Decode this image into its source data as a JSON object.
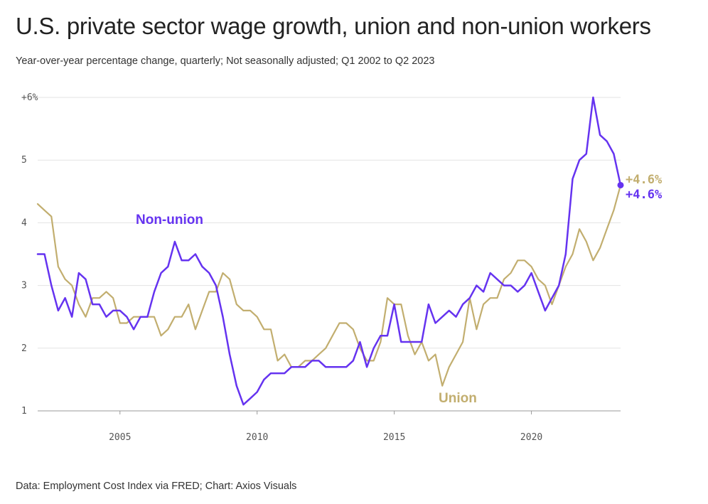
{
  "title": "U.S. private sector wage growth, union and non-union workers",
  "subtitle": "Year-over-year percentage change, quarterly; Not seasonally adjusted; Q1 2002 to Q2 2023",
  "source": "Data: Employment Cost Index via FRED; Chart: Axios Visuals",
  "colors": {
    "non_union": "#6533f0",
    "union": "#c2ae6f",
    "grid": "#e3e3e3",
    "axis": "#999999"
  },
  "chart_data": {
    "type": "line",
    "title": "U.S. private sector wage growth, union and non-union workers",
    "xlabel": "",
    "ylabel": "",
    "ylim": [
      1,
      6
    ],
    "xlim": [
      2002.0,
      2023.25
    ],
    "grid": true,
    "y_ticks": [
      {
        "value": 6,
        "label": "+6%"
      },
      {
        "value": 5,
        "label": "5"
      },
      {
        "value": 4,
        "label": "4"
      },
      {
        "value": 3,
        "label": "3"
      },
      {
        "value": 2,
        "label": "2"
      },
      {
        "value": 1,
        "label": "1"
      }
    ],
    "x_ticks": [
      {
        "value": 2005,
        "label": "2005"
      },
      {
        "value": 2010,
        "label": "2010"
      },
      {
        "value": 2015,
        "label": "2015"
      },
      {
        "value": 2020,
        "label": "2020"
      }
    ],
    "x_start": "2002-Q1",
    "frequency": "quarterly",
    "series": [
      {
        "name": "Non-union",
        "key": "non_union",
        "end_label": "+4.6%",
        "values": [
          3.5,
          3.5,
          3.0,
          2.6,
          2.8,
          2.5,
          3.2,
          3.1,
          2.7,
          2.7,
          2.5,
          2.6,
          2.6,
          2.5,
          2.3,
          2.5,
          2.5,
          2.9,
          3.2,
          3.3,
          3.7,
          3.4,
          3.4,
          3.5,
          3.3,
          3.2,
          3.0,
          2.5,
          1.9,
          1.4,
          1.1,
          1.2,
          1.3,
          1.5,
          1.6,
          1.6,
          1.6,
          1.7,
          1.7,
          1.7,
          1.8,
          1.8,
          1.7,
          1.7,
          1.7,
          1.7,
          1.8,
          2.1,
          1.7,
          2.0,
          2.2,
          2.2,
          2.7,
          2.1,
          2.1,
          2.1,
          2.1,
          2.7,
          2.4,
          2.5,
          2.6,
          2.5,
          2.7,
          2.8,
          3.0,
          2.9,
          3.2,
          3.1,
          3.0,
          3.0,
          2.9,
          3.0,
          3.2,
          2.9,
          2.6,
          2.8,
          3.0,
          3.5,
          4.7,
          5.0,
          5.1,
          6.0,
          5.4,
          5.3,
          5.1,
          4.6
        ]
      },
      {
        "name": "Union",
        "key": "union",
        "end_label": "+4.6%",
        "values": [
          4.3,
          4.2,
          4.1,
          3.3,
          3.1,
          3.0,
          2.7,
          2.5,
          2.8,
          2.8,
          2.9,
          2.8,
          2.4,
          2.4,
          2.5,
          2.5,
          2.5,
          2.5,
          2.2,
          2.3,
          2.5,
          2.5,
          2.7,
          2.3,
          2.6,
          2.9,
          2.9,
          3.2,
          3.1,
          2.7,
          2.6,
          2.6,
          2.5,
          2.3,
          2.3,
          1.8,
          1.9,
          1.7,
          1.7,
          1.8,
          1.8,
          1.9,
          2.0,
          2.2,
          2.4,
          2.4,
          2.3,
          2.0,
          1.8,
          1.8,
          2.1,
          2.8,
          2.7,
          2.7,
          2.2,
          1.9,
          2.1,
          1.8,
          1.9,
          1.4,
          1.7,
          1.9,
          2.1,
          2.8,
          2.3,
          2.7,
          2.8,
          2.8,
          3.1,
          3.2,
          3.4,
          3.4,
          3.3,
          3.1,
          3.0,
          2.7,
          3.0,
          3.3,
          3.5,
          3.9,
          3.7,
          3.4,
          3.6,
          3.9,
          4.2,
          4.6
        ]
      }
    ]
  }
}
